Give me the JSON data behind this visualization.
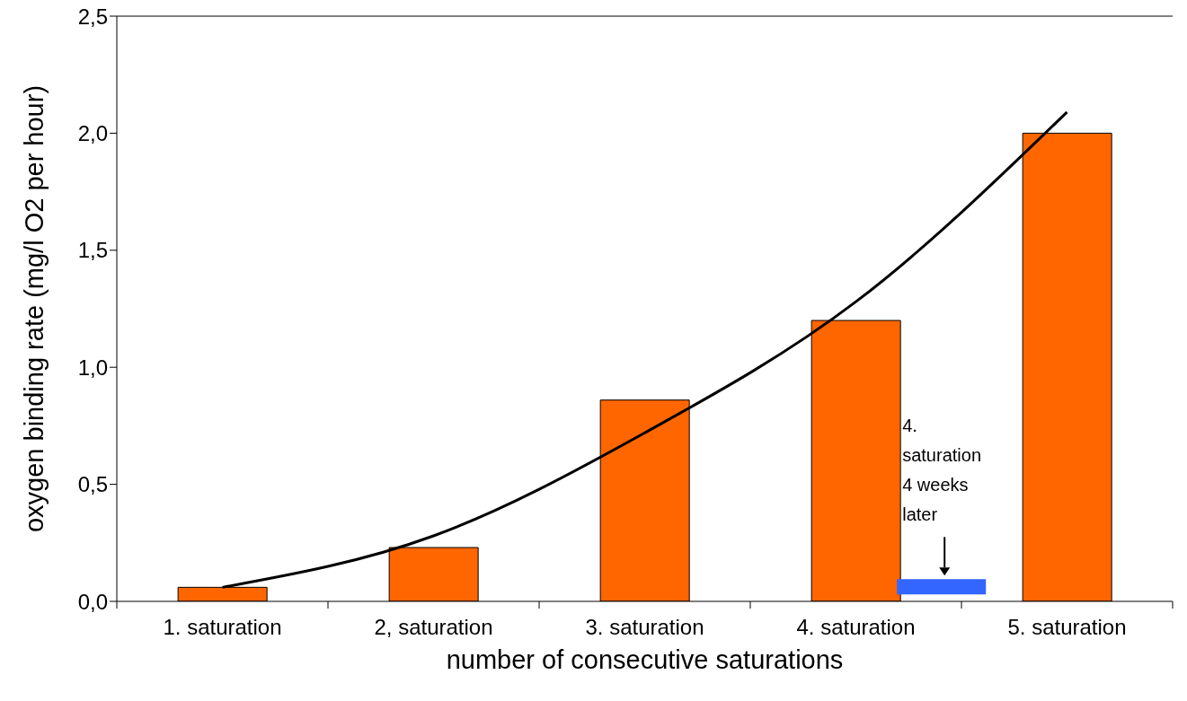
{
  "chart_data": {
    "type": "bar",
    "xlabel": "number of consecutive saturations",
    "ylabel": "oxygen binding rate (mg/l O2 per hour)",
    "categories": [
      "1. saturation",
      "2, saturation",
      "3. saturation",
      "4. saturation",
      "5. saturation"
    ],
    "ylim": [
      0,
      2.5
    ],
    "yticks": [
      {
        "value": 0,
        "label": "0,0"
      },
      {
        "value": 0.5,
        "label": "0,5"
      },
      {
        "value": 1,
        "label": "1,0"
      },
      {
        "value": 1.5,
        "label": "1,5"
      },
      {
        "value": 2,
        "label": "2,0"
      },
      {
        "value": 2.5,
        "label": "2,5"
      }
    ],
    "grid": false,
    "series": [
      {
        "color": "#ff6600",
        "values": [
          0.06,
          0.23,
          0.86,
          1.2,
          2.0
        ]
      },
      {
        "color": "#3366ff",
        "values": [
          null,
          null,
          null,
          0.065,
          null
        ],
        "base": [
          null,
          null,
          null,
          0.03,
          null
        ]
      },
      {
        "type": "line",
        "color": "#000000",
        "values": [
          0.06,
          0.28,
          0.72,
          1.28,
          2.09
        ]
      }
    ],
    "annotations": [
      "4. saturation 4 weeks later"
    ]
  }
}
